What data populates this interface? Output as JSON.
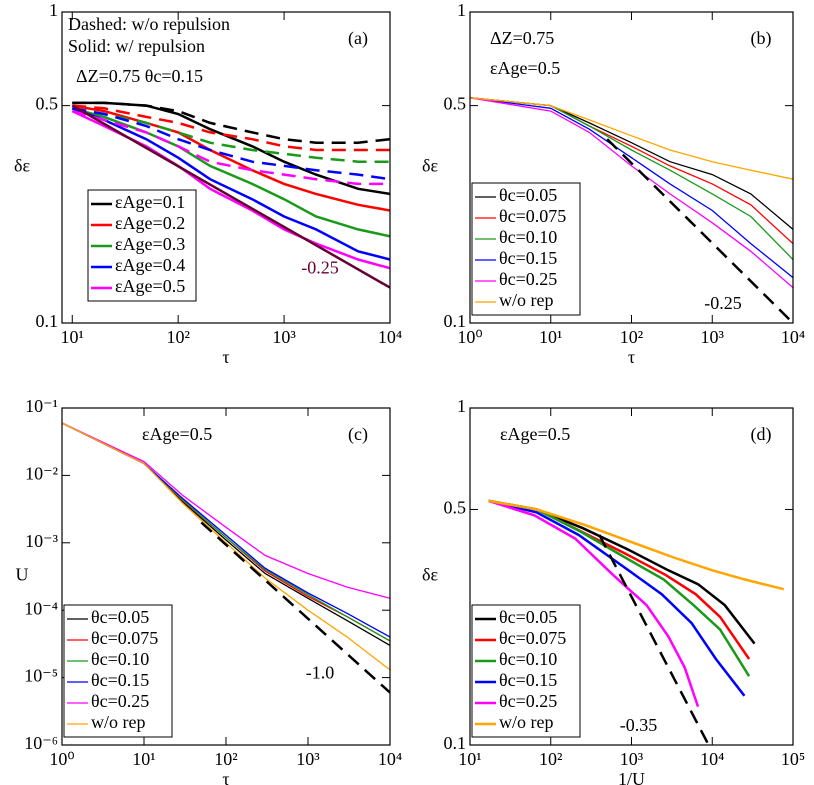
{
  "chart_data": [
    {
      "type": "line",
      "panel": "(a)",
      "xlabel": "τ",
      "ylabel": "δε",
      "xlog": true,
      "ylog": true,
      "line_width": 2.5,
      "legend": "lower left",
      "xlim": [
        8,
        10000
      ],
      "ylim": [
        0.1,
        1
      ],
      "xticks": [
        {
          "value": 10,
          "label": "10¹"
        },
        {
          "value": 100,
          "label": "10²"
        },
        {
          "value": 1000,
          "label": "10³"
        },
        {
          "value": 10000,
          "label": "10⁴"
        }
      ],
      "yticks": [
        0.1,
        0.5,
        1
      ],
      "annotations": [
        "Dashed: w/o repulsion",
        "Solid: w/ repulsion",
        "ΔZ=0.75 θc=0.15"
      ],
      "x": [
        10,
        20,
        50,
        100,
        200,
        500,
        1000,
        2000,
        5000,
        10000
      ],
      "series": [
        {
          "name": "εAge=0.1",
          "color": "#000000",
          "values": [
            0.51,
            0.51,
            0.5,
            0.47,
            0.42,
            0.37,
            0.33,
            0.3,
            0.27,
            0.26
          ],
          "dashed_values": [
            0.51,
            0.51,
            0.5,
            0.48,
            0.44,
            0.41,
            0.39,
            0.38,
            0.38,
            0.39
          ]
        },
        {
          "name": "εAge=0.2",
          "color": "#ff0000",
          "values": [
            0.5,
            0.48,
            0.44,
            0.41,
            0.36,
            0.31,
            0.28,
            0.26,
            0.24,
            0.23
          ],
          "dashed_values": [
            0.5,
            0.49,
            0.46,
            0.44,
            0.41,
            0.39,
            0.37,
            0.36,
            0.36,
            0.36
          ]
        },
        {
          "name": "εAge=0.3",
          "color": "#1a9a1a",
          "values": [
            0.49,
            0.46,
            0.41,
            0.37,
            0.32,
            0.28,
            0.25,
            0.22,
            0.2,
            0.19
          ],
          "dashed_values": [
            0.49,
            0.47,
            0.44,
            0.41,
            0.38,
            0.36,
            0.35,
            0.34,
            0.33,
            0.33
          ]
        },
        {
          "name": "εAge=0.4",
          "color": "#0000ff",
          "values": [
            0.49,
            0.45,
            0.39,
            0.34,
            0.29,
            0.25,
            0.22,
            0.2,
            0.17,
            0.16
          ],
          "dashed_values": [
            0.49,
            0.47,
            0.43,
            0.39,
            0.36,
            0.33,
            0.32,
            0.31,
            0.3,
            0.29
          ]
        },
        {
          "name": "εAge=0.5",
          "color": "#ff00ff",
          "values": [
            0.48,
            0.43,
            0.37,
            0.32,
            0.27,
            0.23,
            0.2,
            0.18,
            0.16,
            0.15
          ],
          "dashed_values": [
            0.48,
            0.45,
            0.41,
            0.37,
            0.33,
            0.31,
            0.3,
            0.29,
            0.28,
            0.28
          ]
        }
      ],
      "guides": [
        {
          "label": "-0.25",
          "color": "#660033",
          "dashed": false,
          "x": [
            10,
            10000
          ],
          "values": [
            0.5,
            0.13
          ]
        }
      ]
    },
    {
      "type": "line",
      "panel": "(b)",
      "xlabel": "τ",
      "ylabel": "δε",
      "xlog": true,
      "ylog": true,
      "line_width": 1.3,
      "legend": "lower left",
      "xlim": [
        1,
        10000
      ],
      "ylim": [
        0.1,
        1
      ],
      "xticks": [
        {
          "value": 1,
          "label": "10⁰"
        },
        {
          "value": 10,
          "label": "10¹"
        },
        {
          "value": 100,
          "label": "10²"
        },
        {
          "value": 1000,
          "label": "10³"
        },
        {
          "value": 10000,
          "label": "10⁴"
        }
      ],
      "yticks": [
        0.1,
        0.5,
        1
      ],
      "annotations": [
        "ΔZ=0.75",
        "εAge=0.5"
      ],
      "x": [
        1,
        10,
        30,
        100,
        300,
        1000,
        3000,
        10000
      ],
      "series": [
        {
          "name": "θc=0.05",
          "color": "#000000",
          "values": [
            0.53,
            0.5,
            0.44,
            0.38,
            0.33,
            0.3,
            0.26,
            0.2
          ]
        },
        {
          "name": "θc=0.075",
          "color": "#ff0000",
          "values": [
            0.53,
            0.5,
            0.43,
            0.37,
            0.32,
            0.28,
            0.24,
            0.18
          ]
        },
        {
          "name": "θc=0.10",
          "color": "#1a9a1a",
          "values": [
            0.53,
            0.5,
            0.43,
            0.36,
            0.31,
            0.26,
            0.22,
            0.16
          ]
        },
        {
          "name": "θc=0.15",
          "color": "#0000ff",
          "values": [
            0.53,
            0.49,
            0.42,
            0.34,
            0.28,
            0.23,
            0.18,
            0.14
          ]
        },
        {
          "name": "θc=0.25",
          "color": "#ff00ff",
          "values": [
            0.53,
            0.48,
            0.41,
            0.32,
            0.26,
            0.21,
            0.17,
            0.13
          ]
        },
        {
          "name": "w/o rep",
          "color": "#ffa500",
          "values": [
            0.53,
            0.5,
            0.45,
            0.4,
            0.36,
            0.33,
            0.31,
            0.29
          ]
        }
      ],
      "guides": [
        {
          "label": "-0.25",
          "color": "#000000",
          "dashed": true,
          "x": [
            50,
            10000
          ],
          "values": [
            0.39,
            0.1
          ]
        }
      ]
    },
    {
      "type": "line",
      "panel": "(c)",
      "xlabel": "τ",
      "ylabel": "U",
      "xlog": true,
      "ylog": true,
      "line_width": 1.3,
      "legend": "lower left",
      "xlim": [
        1,
        10000
      ],
      "ylim": [
        1e-06,
        0.1
      ],
      "xticks": [
        {
          "value": 1,
          "label": "10⁰"
        },
        {
          "value": 10,
          "label": "10¹"
        },
        {
          "value": 100,
          "label": "10²"
        },
        {
          "value": 1000,
          "label": "10³"
        },
        {
          "value": 10000,
          "label": "10⁴"
        }
      ],
      "yticks": [
        {
          "value": 1e-06,
          "label": "10⁻⁶"
        },
        {
          "value": 1e-05,
          "label": "10⁻⁵"
        },
        {
          "value": 0.0001,
          "label": "10⁻⁴"
        },
        {
          "value": 0.001,
          "label": "10⁻³"
        },
        {
          "value": 0.01,
          "label": "10⁻²"
        },
        {
          "value": 0.1,
          "label": "10⁻¹"
        }
      ],
      "annotations": [
        "εAge=0.5"
      ],
      "x": [
        1,
        10,
        30,
        100,
        300,
        1000,
        3000,
        10000
      ],
      "series": [
        {
          "name": "θc=0.05",
          "color": "#000000",
          "values": [
            0.06,
            0.015,
            0.004,
            0.0011,
            0.00035,
            0.00015,
            7e-05,
            3e-05
          ]
        },
        {
          "name": "θc=0.075",
          "color": "#ff0000",
          "values": [
            0.06,
            0.015,
            0.0042,
            0.0012,
            0.00038,
            0.00016,
            8e-05,
            3.5e-05
          ]
        },
        {
          "name": "θc=0.10",
          "color": "#1a9a1a",
          "values": [
            0.06,
            0.015,
            0.0043,
            0.0012,
            0.0004,
            0.00017,
            8e-05,
            3.5e-05
          ]
        },
        {
          "name": "θc=0.15",
          "color": "#0000ff",
          "values": [
            0.06,
            0.015,
            0.0045,
            0.0013,
            0.00042,
            0.00018,
            9e-05,
            4e-05
          ]
        },
        {
          "name": "θc=0.25",
          "color": "#ff00ff",
          "values": [
            0.06,
            0.016,
            0.005,
            0.0017,
            0.00065,
            0.00035,
            0.00022,
            0.00015
          ]
        },
        {
          "name": "w/o rep",
          "color": "#ffa500",
          "values": [
            0.06,
            0.015,
            0.0038,
            0.001,
            0.0003,
            0.0001,
            4e-05,
            1.3e-05
          ]
        }
      ],
      "guides": [
        {
          "label": "-1.0",
          "color": "#000000",
          "dashed": true,
          "x": [
            50,
            10000
          ],
          "values": [
            0.002,
            6e-06
          ]
        }
      ]
    },
    {
      "type": "line",
      "panel": "(d)",
      "xlabel": "1/U",
      "ylabel": "δε",
      "xlog": true,
      "ylog": true,
      "line_width": 2.5,
      "legend": "lower left",
      "xlim": [
        10,
        100000
      ],
      "ylim": [
        0.1,
        1
      ],
      "xticks": [
        {
          "value": 10,
          "label": "10¹"
        },
        {
          "value": 100,
          "label": "10²"
        },
        {
          "value": 1000,
          "label": "10³"
        },
        {
          "value": 10000,
          "label": "10⁴"
        },
        {
          "value": 100000,
          "label": "10⁵"
        }
      ],
      "yticks": [
        0.1,
        0.5,
        1
      ],
      "annotations": [
        "εAge=0.5"
      ],
      "series": [
        {
          "name": "θc=0.05",
          "color": "#000000",
          "x": [
            17,
            67,
            250,
            909,
            2857,
            6667,
            14286,
            33333
          ],
          "values": [
            0.53,
            0.5,
            0.44,
            0.38,
            0.33,
            0.3,
            0.26,
            0.2
          ]
        },
        {
          "name": "θc=0.075",
          "color": "#ff0000",
          "x": [
            17,
            67,
            238,
            833,
            2632,
            6250,
            12500,
            28571
          ],
          "values": [
            0.53,
            0.5,
            0.43,
            0.37,
            0.32,
            0.28,
            0.24,
            0.18
          ]
        },
        {
          "name": "θc=0.10",
          "color": "#1a9a1a",
          "x": [
            17,
            67,
            233,
            833,
            2500,
            5882,
            12500,
            28571
          ],
          "values": [
            0.53,
            0.5,
            0.43,
            0.36,
            0.31,
            0.26,
            0.22,
            0.16
          ]
        },
        {
          "name": "θc=0.15",
          "color": "#0000ff",
          "x": [
            17,
            67,
            222,
            769,
            2381,
            5556,
            11111,
            25000
          ],
          "values": [
            0.53,
            0.49,
            0.42,
            0.34,
            0.28,
            0.23,
            0.18,
            0.14
          ]
        },
        {
          "name": "θc=0.25",
          "color": "#ff00ff",
          "x": [
            17,
            63,
            200,
            588,
            1538,
            2857,
            4545,
            6667
          ],
          "values": [
            0.53,
            0.48,
            0.41,
            0.32,
            0.26,
            0.21,
            0.17,
            0.13
          ]
        },
        {
          "name": "w/o rep",
          "color": "#ffa500",
          "x": [
            17,
            67,
            263,
            1000,
            3333,
            10000,
            25000,
            76923
          ],
          "values": [
            0.53,
            0.5,
            0.45,
            0.4,
            0.36,
            0.33,
            0.31,
            0.29
          ]
        }
      ],
      "guides": [
        {
          "label": "-0.35",
          "color": "#000000",
          "dashed": true,
          "x": [
            400,
            9000
          ],
          "values": [
            0.42,
            0.1
          ]
        }
      ]
    }
  ]
}
